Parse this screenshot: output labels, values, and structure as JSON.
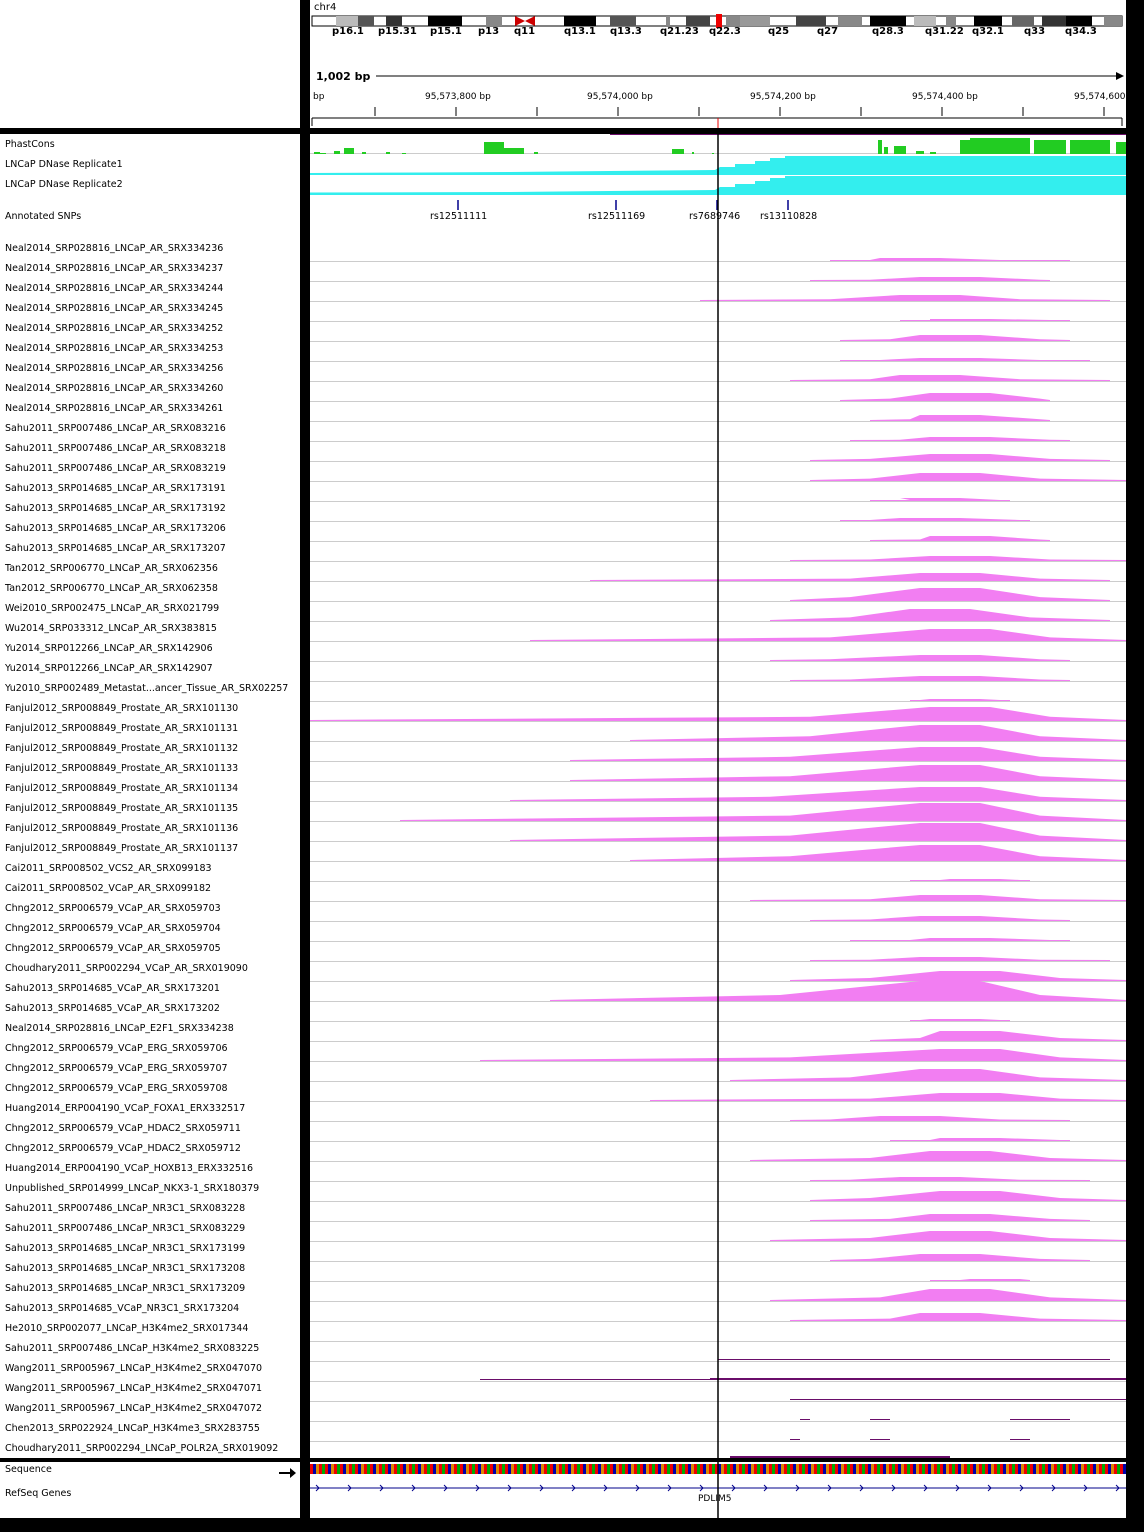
{
  "header": {
    "chromosome": "chr4",
    "bands": [
      {
        "label": "p16.1",
        "at": 36
      },
      {
        "label": "p15.31",
        "at": 82
      },
      {
        "label": "p15.1",
        "at": 134
      },
      {
        "label": "p13",
        "at": 182
      },
      {
        "label": "q11",
        "at": 218
      },
      {
        "label": "q13.1",
        "at": 268
      },
      {
        "label": "q13.3",
        "at": 314
      },
      {
        "label": "q21.23",
        "at": 364
      },
      {
        "label": "q22.3",
        "at": 413
      },
      {
        "label": "q25",
        "at": 472
      },
      {
        "label": "q27",
        "at": 521
      },
      {
        "label": "q28.3",
        "at": 576
      },
      {
        "label": "q31.22",
        "at": 629
      },
      {
        "label": "q32.1",
        "at": 676
      },
      {
        "label": "q33",
        "at": 728
      },
      {
        "label": "q34.3",
        "at": 769
      }
    ],
    "span_label": "1,002 bp",
    "bp_label": "bp",
    "ticks": [
      "95,573,800 bp",
      "95,574,000 bp",
      "95,574,200 bp",
      "95,574,400 bp",
      "95,574,600"
    ]
  },
  "tracks": [
    "PhastCons",
    "LNCaP DNase Replicate1",
    "LNCaP DNase Replicate2",
    "Annotated SNPs",
    "Neal2014_SRP028816_LNCaP_AR_SRX334236",
    "Neal2014_SRP028816_LNCaP_AR_SRX334237",
    "Neal2014_SRP028816_LNCaP_AR_SRX334244",
    "Neal2014_SRP028816_LNCaP_AR_SRX334245",
    "Neal2014_SRP028816_LNCaP_AR_SRX334252",
    "Neal2014_SRP028816_LNCaP_AR_SRX334253",
    "Neal2014_SRP028816_LNCaP_AR_SRX334256",
    "Neal2014_SRP028816_LNCaP_AR_SRX334260",
    "Neal2014_SRP028816_LNCaP_AR_SRX334261",
    "Sahu2011_SRP007486_LNCaP_AR_SRX083216",
    "Sahu2011_SRP007486_LNCaP_AR_SRX083218",
    "Sahu2011_SRP007486_LNCaP_AR_SRX083219",
    "Sahu2013_SRP014685_LNCaP_AR_SRX173191",
    "Sahu2013_SRP014685_LNCaP_AR_SRX173192",
    "Sahu2013_SRP014685_LNCaP_AR_SRX173206",
    "Sahu2013_SRP014685_LNCaP_AR_SRX173207",
    "Tan2012_SRP006770_LNCaP_AR_SRX062356",
    "Tan2012_SRP006770_LNCaP_AR_SRX062358",
    "Wei2010_SRP002475_LNCaP_AR_SRX021799",
    "Wu2014_SRP033312_LNCaP_AR_SRX383815",
    "Yu2014_SRP012266_LNCaP_AR_SRX142906",
    "Yu2014_SRP012266_LNCaP_AR_SRX142907",
    "Yu2010_SRP002489_Metastat...ancer_Tissue_AR_SRX02257",
    "Fanjul2012_SRP008849_Prostate_AR_SRX101130",
    "Fanjul2012_SRP008849_Prostate_AR_SRX101131",
    "Fanjul2012_SRP008849_Prostate_AR_SRX101132",
    "Fanjul2012_SRP008849_Prostate_AR_SRX101133",
    "Fanjul2012_SRP008849_Prostate_AR_SRX101134",
    "Fanjul2012_SRP008849_Prostate_AR_SRX101135",
    "Fanjul2012_SRP008849_Prostate_AR_SRX101136",
    "Fanjul2012_SRP008849_Prostate_AR_SRX101137",
    "Cai2011_SRP008502_VCS2_AR_SRX099183",
    "Cai2011_SRP008502_VCaP_AR_SRX099182",
    "Chng2012_SRP006579_VCaP_AR_SRX059703",
    "Chng2012_SRP006579_VCaP_AR_SRX059704",
    "Chng2012_SRP006579_VCaP_AR_SRX059705",
    "Choudhary2011_SRP002294_VCaP_AR_SRX019090",
    "Sahu2013_SRP014685_VCaP_AR_SRX173201",
    "Sahu2013_SRP014685_VCaP_AR_SRX173202",
    "Neal2014_SRP028816_LNCaP_E2F1_SRX334238",
    "Chng2012_SRP006579_VCaP_ERG_SRX059706",
    "Chng2012_SRP006579_VCaP_ERG_SRX059707",
    "Chng2012_SRP006579_VCaP_ERG_SRX059708",
    "Huang2014_ERP004190_VCaP_FOXA1_ERX332517",
    "Chng2012_SRP006579_VCaP_HDAC2_SRX059711",
    "Chng2012_SRP006579_VCaP_HDAC2_SRX059712",
    "Huang2014_ERP004190_VCaP_HOXB13_ERX332516",
    "Unpublished_SRP014999_LNCaP_NKX3-1_SRX180379",
    "Sahu2011_SRP007486_LNCaP_NR3C1_SRX083228",
    "Sahu2011_SRP007486_LNCaP_NR3C1_SRX083229",
    "Sahu2013_SRP014685_LNCaP_NR3C1_SRX173199",
    "Sahu2013_SRP014685_LNCaP_NR3C1_SRX173208",
    "Sahu2013_SRP014685_LNCaP_NR3C1_SRX173209",
    "Sahu2013_SRP014685_VCaP_NR3C1_SRX173204",
    "He2010_SRP002077_LNCaP_H3K4me2_SRX017344",
    "Sahu2011_SRP007486_LNCaP_H3K4me2_SRX083225",
    "Wang2011_SRP005967_LNCaP_H3K4me2_SRX047070",
    "Wang2011_SRP005967_LNCaP_H3K4me2_SRX047071",
    "Wang2011_SRP005967_LNCaP_H3K4me2_SRX047072",
    "Chen2013_SRP022924_LNCaP_H3K4me3_SRX283755",
    "Choudhary2011_SRP002294_LNCaP_POLR2A_SRX019092"
  ],
  "bottom_tracks": [
    "Sequence",
    "RefSeq Genes"
  ],
  "snps": [
    "rs12511111",
    "rs12511169",
    "rs7689746",
    "rs13110828"
  ],
  "gene_label": "PDLIM5",
  "colors": {
    "phastcons": "#22cc22",
    "dnase": "#33eeee",
    "chip": "#f27ef2",
    "histone": "#6a0d6a",
    "snp": "#00008b",
    "gene": "#00008b",
    "cursor": "#000000"
  }
}
